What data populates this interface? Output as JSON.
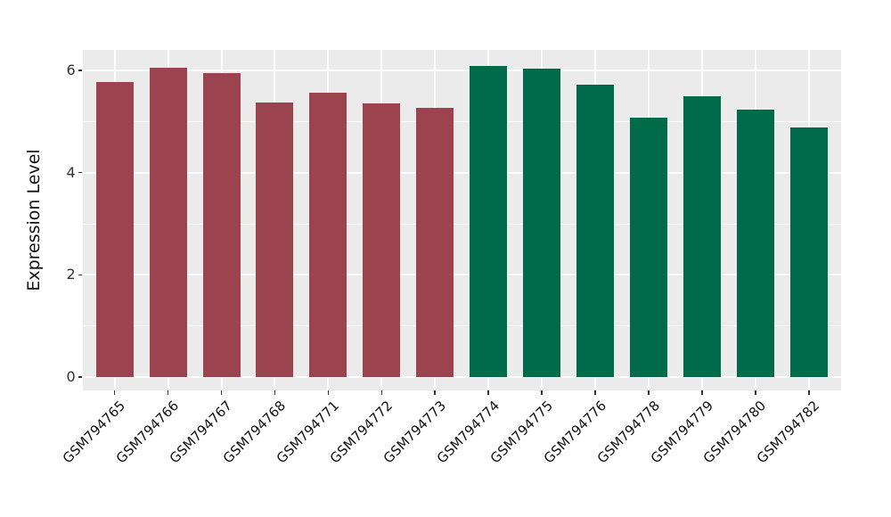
{
  "chart_data": {
    "type": "bar",
    "title": "",
    "xlabel": "",
    "ylabel": "Expression Level",
    "categories": [
      "GSM794765",
      "GSM794766",
      "GSM794767",
      "GSM794768",
      "GSM794771",
      "GSM794772",
      "GSM794773",
      "GSM794774",
      "GSM794775",
      "GSM794776",
      "GSM794778",
      "GSM794779",
      "GSM794780",
      "GSM794782"
    ],
    "values": [
      5.78,
      6.06,
      5.95,
      5.38,
      5.57,
      5.36,
      5.26,
      6.08,
      6.03,
      5.72,
      5.07,
      5.5,
      5.23,
      4.89
    ],
    "groups": [
      "group1",
      "group1",
      "group1",
      "group1",
      "group1",
      "group1",
      "group1",
      "group2",
      "group2",
      "group2",
      "group2",
      "group2",
      "group2",
      "group2"
    ],
    "group_colors": {
      "group1": "#9C4350",
      "group2": "#006B48"
    },
    "yticks": [
      0,
      2,
      4,
      6
    ],
    "minor_yticks": [
      1,
      3,
      5
    ],
    "ylim": [
      0,
      6.4
    ],
    "grid": "on",
    "legend": "none",
    "panel_background": "#EBEBEB",
    "gridline_color": "#FFFFFF",
    "tick_mark_color": "#333333",
    "tick_label_color": "#333333",
    "axis_title_color": "#111111"
  }
}
